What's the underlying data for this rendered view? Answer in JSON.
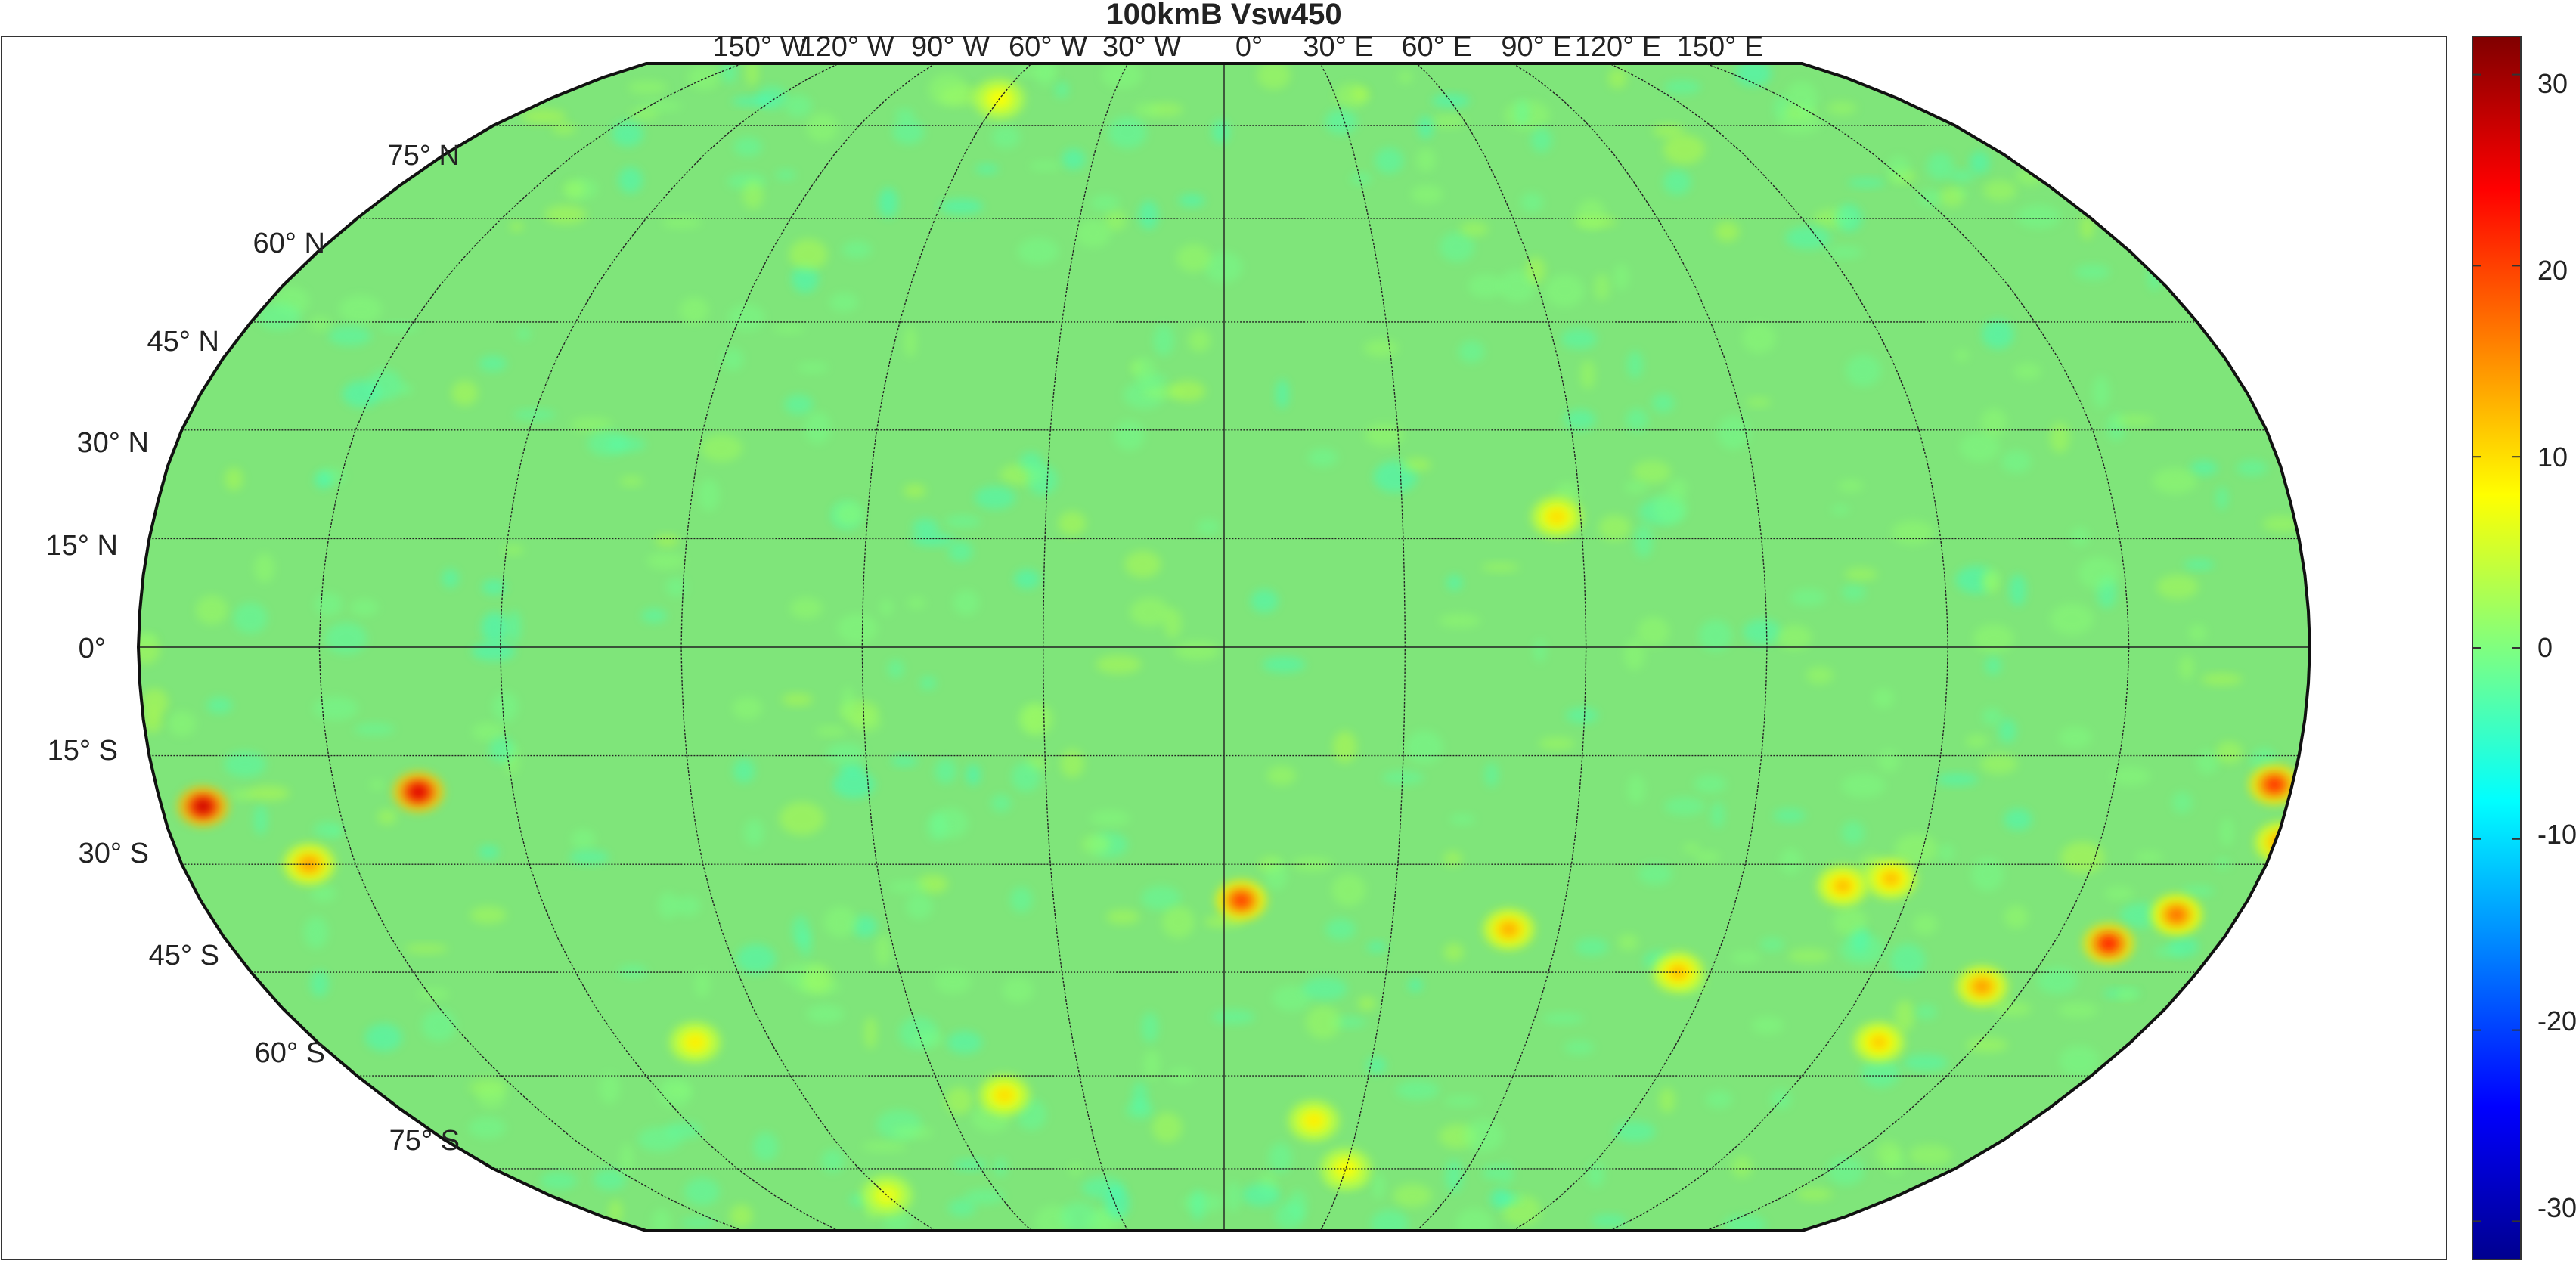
{
  "title": "100kmB Vsw450",
  "map": {
    "projection": "Robinson",
    "graticule_step_deg": 15,
    "lat_labels": [
      "75° N",
      "60° N",
      "45° N",
      "30° N",
      "15° N",
      "0°",
      "15° S",
      "30° S",
      "45° S",
      "60° S",
      "75° S"
    ],
    "lon_labels": [
      "150° W",
      "120° W",
      "90° W",
      "60° W",
      "30° W",
      "0°",
      "30° E",
      "60° E",
      "90° E",
      "120° E",
      "150° E"
    ],
    "background_color": "#7fe57a",
    "hotspots": [
      {
        "lon": -173,
        "lat": -22,
        "value": 27
      },
      {
        "lon": -136,
        "lat": -20,
        "value": 26
      },
      {
        "lon": -158,
        "lat": -30,
        "value": 14
      },
      {
        "lon": 3,
        "lat": -35,
        "value": 20
      },
      {
        "lon": 160,
        "lat": -41,
        "value": 22
      },
      {
        "lon": 169,
        "lat": -37,
        "value": 17
      },
      {
        "lon": 177,
        "lat": -19,
        "value": 21
      },
      {
        "lon": 181,
        "lat": -27,
        "value": 14
      },
      {
        "lon": 142,
        "lat": -47,
        "value": 14
      },
      {
        "lon": 51,
        "lat": -39,
        "value": 13
      },
      {
        "lon": 84,
        "lat": -45,
        "value": 12
      },
      {
        "lon": 108,
        "lat": -33,
        "value": 12
      },
      {
        "lon": 116,
        "lat": -32,
        "value": 12
      },
      {
        "lon": 56,
        "lat": 18,
        "value": 10
      },
      {
        "lon": -47,
        "lat": -63,
        "value": 10
      },
      {
        "lon": 20,
        "lat": -67,
        "value": 9
      },
      {
        "lon": -105,
        "lat": -55,
        "value": 9
      },
      {
        "lon": -60,
        "lat": 80,
        "value": 8
      },
      {
        "lon": 30,
        "lat": -75,
        "value": 8
      },
      {
        "lon": -90,
        "lat": -80,
        "value": 7
      },
      {
        "lon": 130,
        "lat": -55,
        "value": 11
      }
    ]
  },
  "colorbar": {
    "ticks": [
      "30",
      "20",
      "10",
      "0",
      "-10",
      "-20",
      "-30"
    ],
    "min": -32,
    "max": 32,
    "colormap": "jet"
  }
}
